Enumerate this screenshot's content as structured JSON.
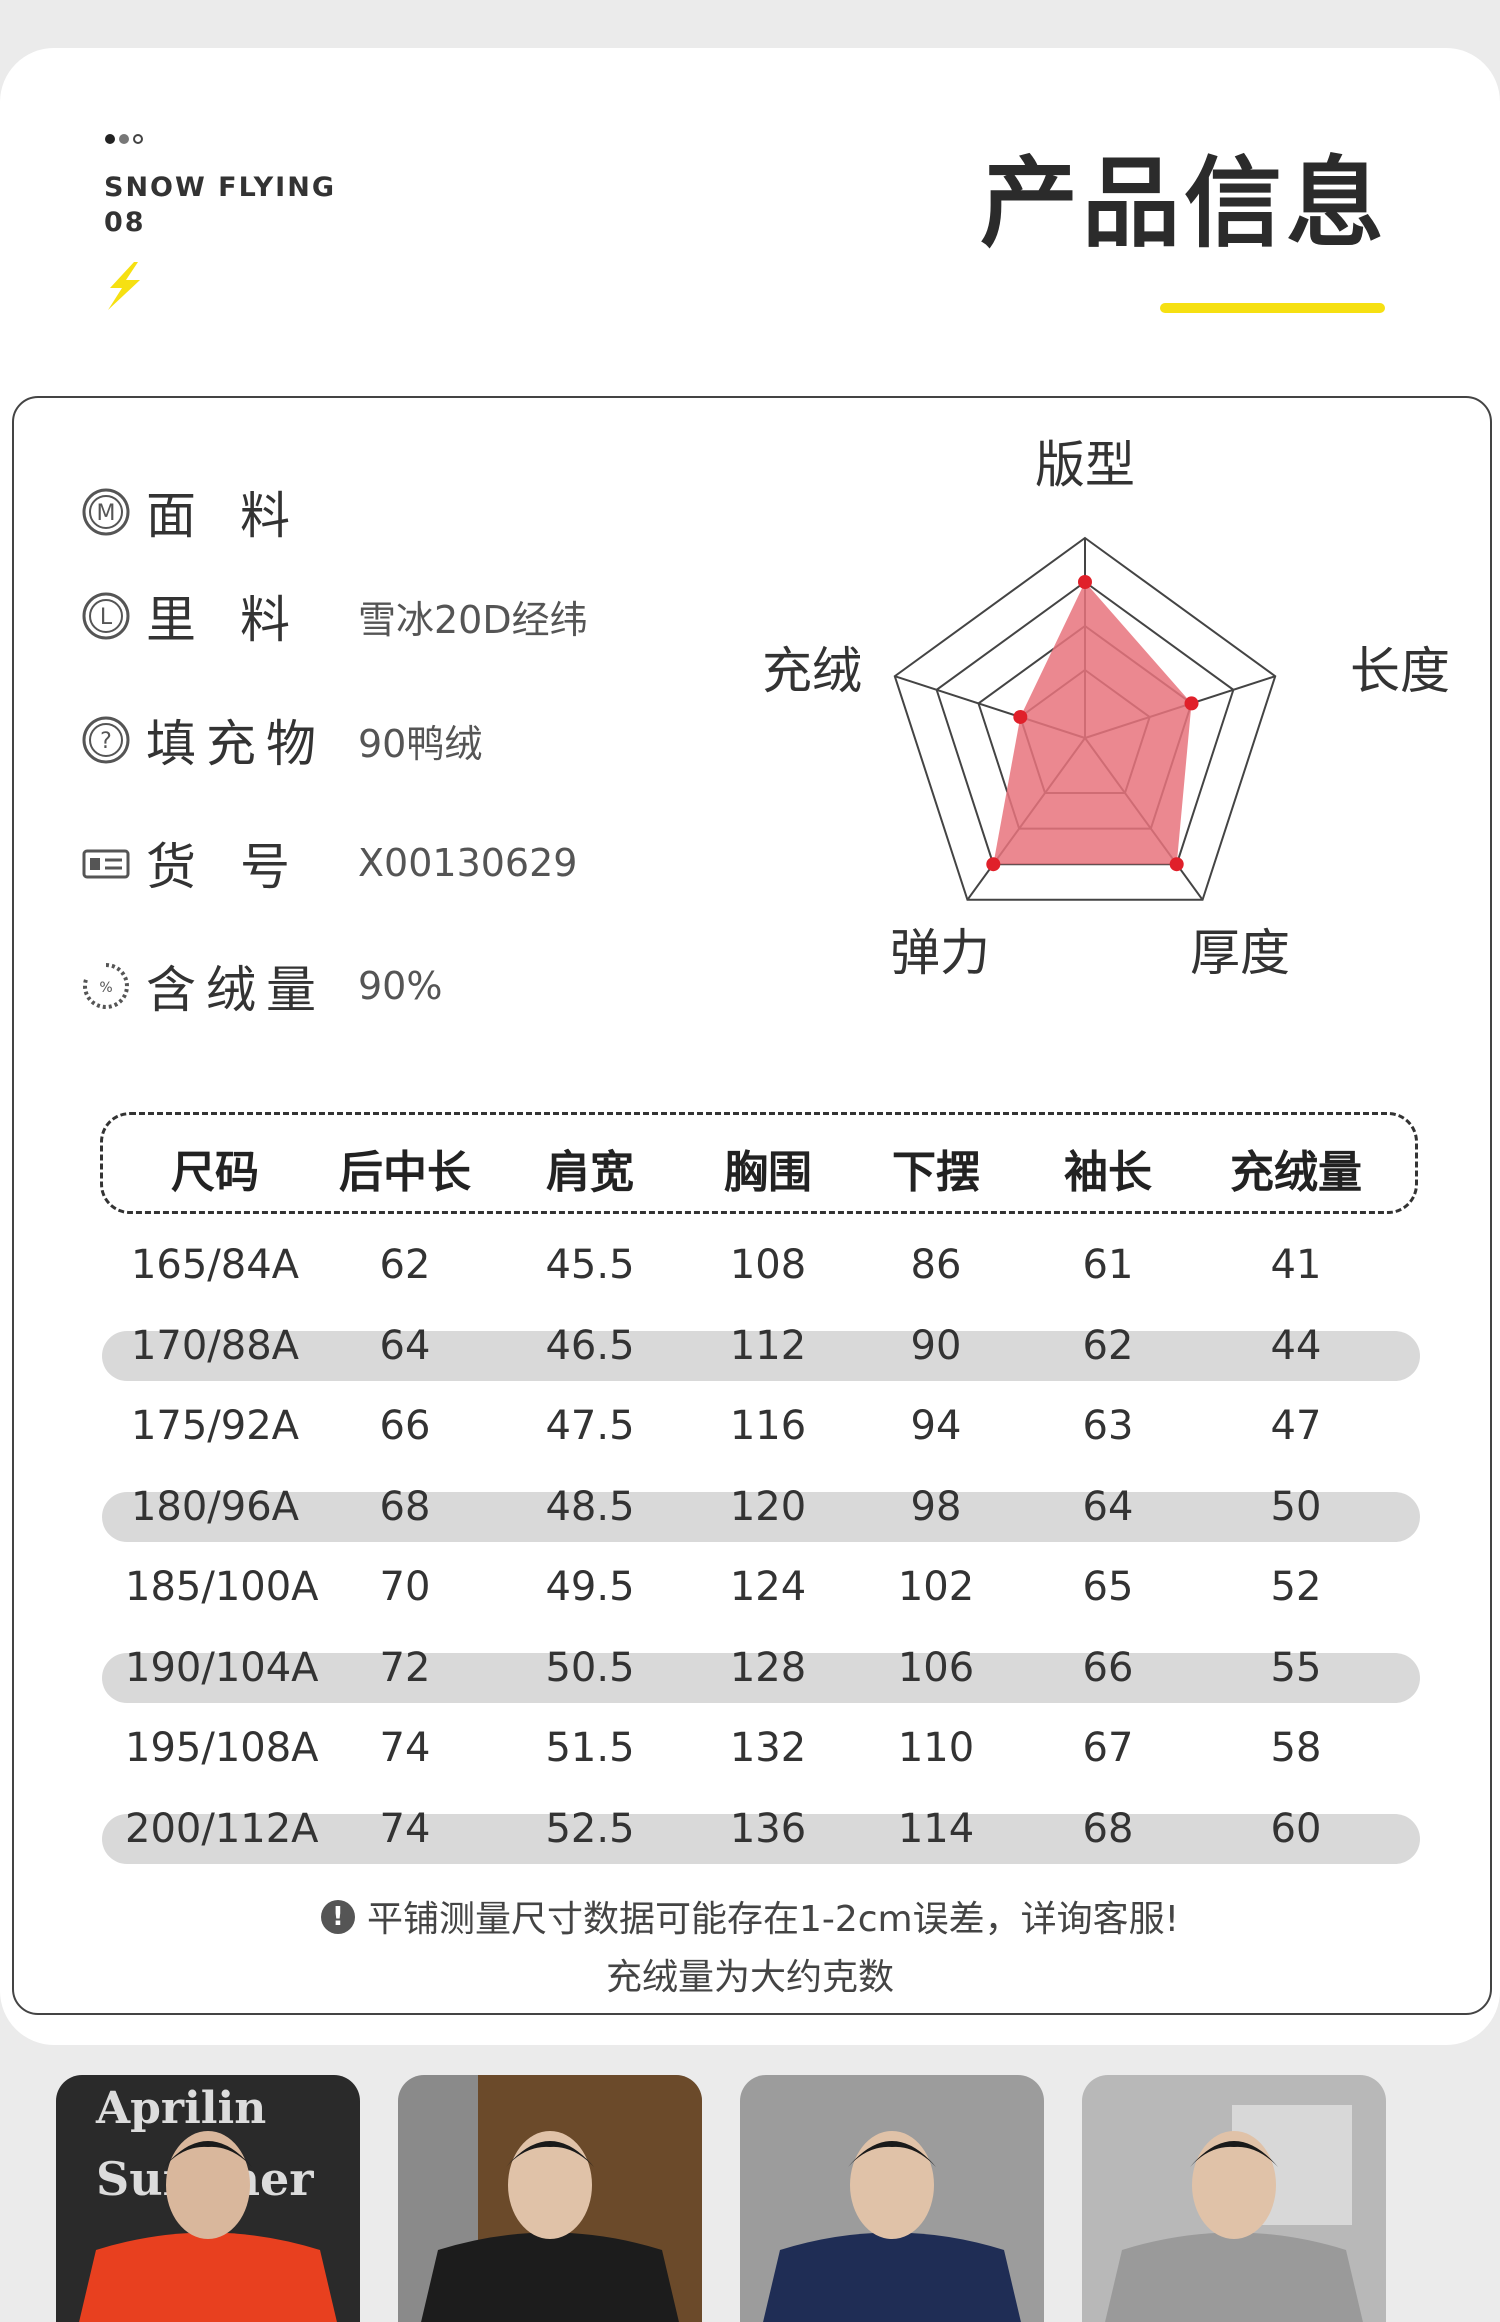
{
  "header": {
    "brand_name": "SNOW FLYING",
    "brand_number": "08",
    "title": "产品信息",
    "accent_color": "#f6e012"
  },
  "attributes": [
    {
      "icon": "m-circle-icon",
      "label": "面料",
      "value": ""
    },
    {
      "icon": "l-circle-icon",
      "label": "里料",
      "value": "雪冰20D经纬"
    },
    {
      "icon": "question-circle-icon",
      "label": "填充物",
      "value": "90鸭绒"
    },
    {
      "icon": "id-card-icon",
      "label": "货号",
      "value": "X00130629"
    },
    {
      "icon": "percent-dial-icon",
      "label": "含绒量",
      "value": "90%"
    }
  ],
  "radar": {
    "axes": [
      "版型",
      "长度",
      "厚度",
      "弹力",
      "充绒"
    ],
    "fill_color": "#e8737c",
    "point_color": "#e0202a"
  },
  "size_table": {
    "headers": [
      "尺码",
      "后中长",
      "肩宽",
      "胸围",
      "下摆",
      "袖长",
      "充绒量"
    ],
    "rows": [
      [
        "165/84A",
        "62",
        "45.5",
        "108",
        "86",
        "61",
        "41"
      ],
      [
        "170/88A",
        "64",
        "46.5",
        "112",
        "90",
        "62",
        "44"
      ],
      [
        "175/92A",
        "66",
        "47.5",
        "116",
        "94",
        "63",
        "47"
      ],
      [
        "180/96A",
        "68",
        "48.5",
        "120",
        "98",
        "64",
        "50"
      ],
      [
        "185/100A",
        "70",
        "49.5",
        "124",
        "102",
        "65",
        "52"
      ],
      [
        "190/104A",
        "72",
        "50.5",
        "128",
        "106",
        "66",
        "55"
      ],
      [
        "195/108A",
        "74",
        "51.5",
        "132",
        "110",
        "67",
        "58"
      ],
      [
        "200/112A",
        "74",
        "52.5",
        "136",
        "114",
        "68",
        "60"
      ]
    ]
  },
  "notes": {
    "line1": "平铺测量尺寸数据可能存在1-2cm误差，详询客服!",
    "line2": "充绒量为大约克数"
  },
  "thumbnails": [
    {
      "jacket_color": "#e8401f",
      "backdrop_text": "Aprilin"
    },
    {
      "jacket_color": "#1c1c1c"
    },
    {
      "jacket_color": "#1f2d55"
    },
    {
      "jacket_color": "#9a9a9a"
    }
  ]
}
